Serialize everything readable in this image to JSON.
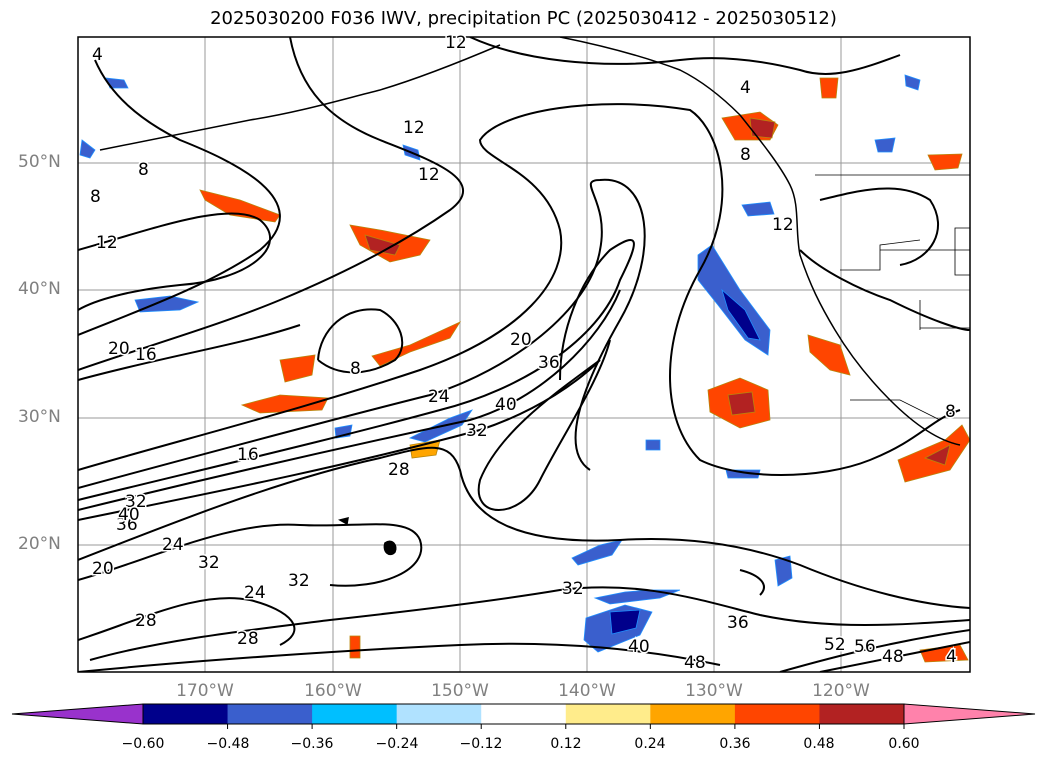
{
  "title": "2025030200 F036 IWV, precipitation PC (2025030412 - 2025030512)",
  "map": {
    "lat_labels": [
      "50°N",
      "40°N",
      "30°N",
      "20°N"
    ],
    "lon_labels": [
      "170°W",
      "160°W",
      "150°W",
      "140°W",
      "130°W",
      "120°W"
    ],
    "grid": true,
    "contour_labels": [
      "4",
      "12",
      "12",
      "8",
      "8",
      "12",
      "4",
      "8",
      "12",
      "12",
      "20",
      "16",
      "8",
      "20",
      "36",
      "24",
      "40",
      "32",
      "16",
      "28",
      "32",
      "36",
      "40",
      "24",
      "20",
      "32",
      "24",
      "32",
      "28",
      "28",
      "32",
      "36",
      "40",
      "48",
      "52",
      "56",
      "48",
      "4",
      "8"
    ]
  },
  "colorbar": {
    "ticks": [
      "−0.60",
      "−0.48",
      "−0.36",
      "−0.24",
      "−0.12",
      "0.12",
      "0.24",
      "0.36",
      "0.48",
      "0.60"
    ],
    "colors": [
      "#9932cc",
      "#00008b",
      "#3a5fcd",
      "#00bfff",
      "#b0e2ff",
      "#ffffff",
      "#ffec8b",
      "#ffa500",
      "#ff4500",
      "#b22222",
      "#ff82ab"
    ]
  }
}
